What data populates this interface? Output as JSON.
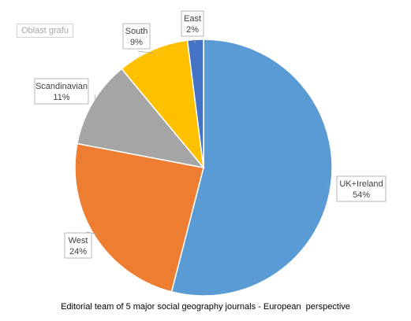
{
  "chart_area_label": "Oblast grafu",
  "chart_data": {
    "type": "pie",
    "title": "Editorial team of 5 major social geography journals - European  perspective",
    "categories": [
      "UK+Ireland",
      "West",
      "Scandinavian",
      "South",
      "East"
    ],
    "values": [
      54,
      24,
      11,
      9,
      2
    ],
    "value_labels": [
      "54%",
      "24%",
      "11%",
      "9%",
      "2%"
    ],
    "colors": [
      "#5b9bd5",
      "#ed7d31",
      "#a5a5a5",
      "#ffc000",
      "#4472c4"
    ],
    "legend": "none"
  }
}
